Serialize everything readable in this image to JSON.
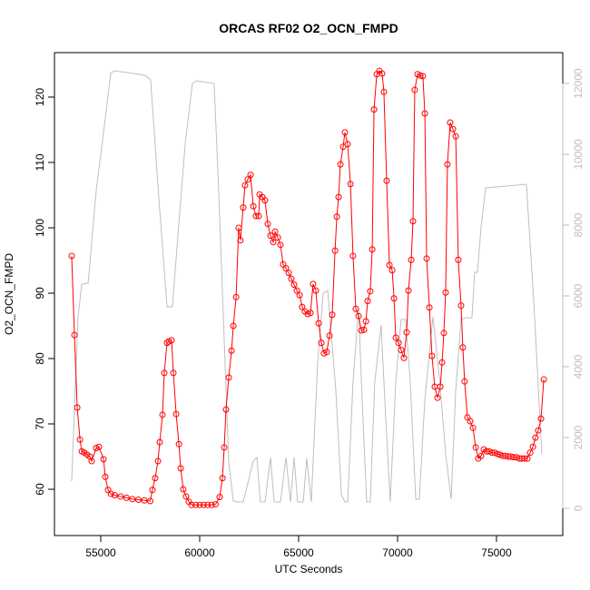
{
  "chart_data": {
    "type": "line",
    "title": "ORCAS RF02 O2_OCN_FMPD",
    "x_label": "UTC Seconds",
    "y_label": "O2_OCN_FMPD",
    "xlim": [
      52660,
      78350
    ],
    "xticks": [
      55000,
      60000,
      65000,
      70000,
      75000
    ],
    "ylim": [
      52.92,
      126.8
    ],
    "yticks": [
      60,
      70,
      80,
      90,
      100,
      110,
      120
    ],
    "y2lim": [
      -769,
      12872
    ],
    "y2ticks": [
      0,
      2000,
      4000,
      6000,
      8000,
      10000,
      12000
    ],
    "series": [
      {
        "color": "#ff0000",
        "marker": "circle",
        "x": [
          53530,
          53670,
          53810,
          53950,
          54040,
          54170,
          54310,
          54450,
          54540,
          54770,
          54910,
          55140,
          55230,
          55370,
          55510,
          55700,
          56000,
          56300,
          56600,
          56900,
          57200,
          57500,
          57610,
          57750,
          57890,
          57980,
          58120,
          58210,
          58350,
          58440,
          58580,
          58670,
          58810,
          58950,
          59040,
          59170,
          59310,
          59450,
          59590,
          59800,
          60000,
          60200,
          60400,
          60600,
          60800,
          61010,
          61150,
          61240,
          61330,
          61470,
          61610,
          61700,
          61840,
          61970,
          62060,
          62200,
          62290,
          62430,
          62570,
          62710,
          62840,
          62980,
          63030,
          63170,
          63300,
          63440,
          63580,
          63720,
          63810,
          63950,
          64080,
          64220,
          64360,
          64500,
          64630,
          64770,
          64910,
          65050,
          65180,
          65320,
          65460,
          65600,
          65730,
          65870,
          66010,
          66150,
          66280,
          66420,
          66560,
          66700,
          66840,
          66930,
          67020,
          67110,
          67250,
          67340,
          67480,
          67620,
          67750,
          67890,
          68030,
          68170,
          68300,
          68400,
          68490,
          68620,
          68720,
          68810,
          68950,
          69080,
          69220,
          69310,
          69450,
          69590,
          69730,
          69820,
          69910,
          70050,
          70180,
          70320,
          70460,
          70550,
          70690,
          70780,
          70870,
          71010,
          71150,
          71280,
          71380,
          71470,
          71610,
          71740,
          71880,
          72020,
          72160,
          72250,
          72340,
          72430,
          72520,
          72660,
          72800,
          72940,
          73070,
          73210,
          73300,
          73390,
          73530,
          73670,
          73810,
          73950,
          74080,
          74220,
          74360,
          74500,
          74630,
          74770,
          74910,
          75050,
          75180,
          75320,
          75460,
          75600,
          75730,
          75870,
          76010,
          76150,
          76280,
          76420,
          76560,
          76700,
          76840,
          76970,
          77110,
          77250,
          77390
        ],
        "values": [
          95.7,
          83.6,
          72.5,
          67.6,
          65.8,
          65.6,
          65.3,
          65.0,
          64.3,
          66.3,
          66.5,
          64.6,
          61.9,
          59.9,
          59.3,
          59.1,
          58.9,
          58.7,
          58.5,
          58.4,
          58.3,
          58.2,
          59.9,
          61.7,
          64.3,
          67.2,
          71.4,
          77.8,
          82.4,
          82.6,
          82.8,
          77.8,
          71.5,
          66.9,
          63.2,
          60.0,
          58.9,
          58.1,
          57.6,
          57.6,
          57.6,
          57.6,
          57.6,
          57.6,
          57.7,
          58.8,
          61.7,
          66.4,
          72.2,
          77.1,
          81.2,
          85.0,
          89.4,
          100.0,
          98.1,
          103.1,
          106.5,
          107.4,
          108.1,
          103.3,
          101.8,
          101.8,
          105.1,
          104.7,
          104.2,
          100.6,
          98.8,
          97.8,
          99.4,
          98.5,
          97.4,
          94.4,
          93.8,
          93.1,
          92.2,
          91.3,
          90.4,
          89.7,
          87.9,
          87.2,
          86.8,
          87.0,
          91.4,
          90.4,
          85.4,
          82.4,
          80.8,
          81.0,
          83.5,
          86.7,
          96.5,
          101.7,
          104.7,
          109.7,
          112.4,
          114.6,
          112.8,
          106.7,
          95.7,
          87.6,
          86.5,
          84.3,
          84.4,
          85.7,
          88.8,
          90.3,
          96.7,
          118.1,
          123.5,
          124.0,
          123.6,
          120.8,
          107.2,
          94.3,
          93.5,
          89.2,
          83.2,
          82.4,
          81.3,
          80.1,
          84.0,
          90.4,
          95.1,
          101.0,
          121.1,
          123.5,
          123.3,
          123.2,
          117.5,
          95.3,
          87.8,
          80.4,
          75.7,
          74.0,
          75.7,
          79.4,
          83.9,
          90.1,
          109.7,
          116.1,
          115.1,
          114.0,
          95.1,
          88.1,
          81.7,
          76.5,
          71.0,
          70.4,
          69.4,
          66.4,
          64.7,
          65.1,
          66.1,
          65.8,
          65.8,
          65.6,
          65.6,
          65.4,
          65.3,
          65.1,
          65.1,
          65.0,
          65.0,
          64.9,
          64.9,
          64.7,
          64.7,
          64.7,
          64.7,
          65.6,
          66.5,
          67.9,
          69.0,
          70.8,
          76.8
        ]
      },
      {
        "color": "#bebebe",
        "axis": "y2",
        "x": [
          53530,
          53850,
          54040,
          54360,
          54770,
          55230,
          55510,
          55730,
          57250,
          57520,
          57940,
          58350,
          58620,
          58950,
          59270,
          59630,
          59820,
          60730,
          60960,
          61240,
          61470,
          61700,
          61880,
          62200,
          62710,
          62890,
          63070,
          63300,
          63580,
          63760,
          64080,
          64360,
          64590,
          64770,
          64950,
          65230,
          65410,
          65640,
          65960,
          66240,
          66470,
          66880,
          67160,
          67340,
          67480,
          67750,
          68030,
          68210,
          68440,
          68620,
          68850,
          69170,
          69400,
          69630,
          69910,
          70180,
          70410,
          70640,
          70920,
          71100,
          71380,
          71790,
          72110,
          72430,
          72710,
          72940,
          73210,
          73440,
          73760,
          73900,
          74040,
          74220,
          74450,
          76510,
          76880,
          77290
        ],
        "values": [
          769,
          5385,
          6333,
          6359,
          8974,
          11026,
          12308,
          12359,
          12231,
          12103,
          8718,
          5692,
          5692,
          8077,
          10308,
          12000,
          12077,
          12000,
          8974,
          4744,
          1282,
          205,
          179,
          179,
          1333,
          1436,
          179,
          179,
          1436,
          179,
          179,
          1436,
          179,
          1436,
          179,
          179,
          1410,
          179,
          4103,
          6077,
          6154,
          3333,
          385,
          179,
          179,
          3590,
          5641,
          3077,
          179,
          179,
          3590,
          5180,
          2564,
          179,
          3590,
          5333,
          5333,
          3590,
          256,
          256,
          3077,
          5410,
          3718,
          1538,
          256,
          3333,
          5333,
          5385,
          5385,
          6667,
          6667,
          7949,
          9051,
          9154,
          5897,
          1538
        ]
      }
    ]
  }
}
